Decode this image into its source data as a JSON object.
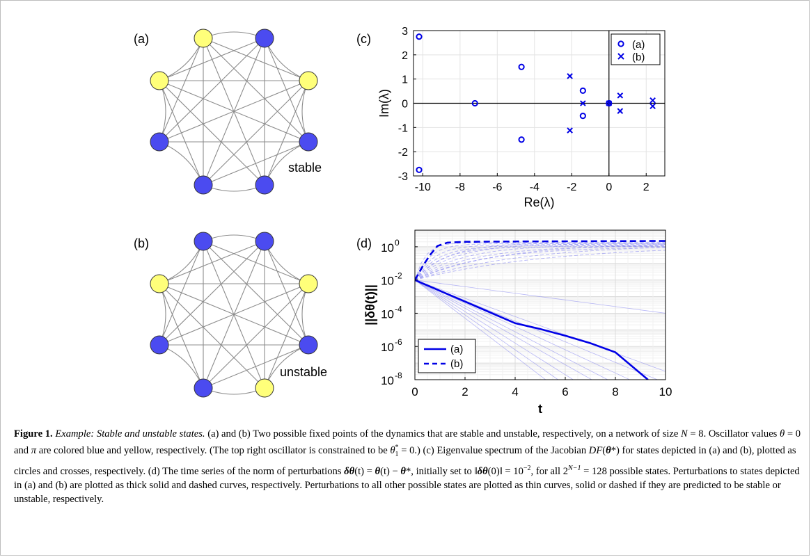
{
  "panels": {
    "a": {
      "tag": "(a)",
      "state_label": "stable",
      "node_colors": [
        "yellow",
        "blue",
        "yellow",
        "yellow",
        "blue",
        "blue",
        "blue",
        "blue"
      ]
    },
    "b": {
      "tag": "(b)",
      "state_label": "unstable",
      "node_colors": [
        "blue",
        "blue",
        "yellow",
        "yellow",
        "blue",
        "blue",
        "blue",
        "yellow"
      ]
    },
    "c": {
      "tag": "(c)"
    },
    "d": {
      "tag": "(d)"
    }
  },
  "colors": {
    "blue": "#4b4bf0",
    "yellow": "#ffff7a",
    "series": "#0000e6"
  },
  "chart_data": [
    {
      "type": "scatter",
      "xlabel": "Re(λ)",
      "ylabel": "Im(λ)",
      "xlim": [
        -10.5,
        3
      ],
      "ylim": [
        -3,
        3
      ],
      "xticks": [
        -10,
        -8,
        -6,
        -4,
        -2,
        0,
        2
      ],
      "yticks": [
        3,
        2,
        1,
        0,
        -1,
        -2,
        -3
      ],
      "grid": true,
      "legend": "top-right",
      "series": [
        {
          "name": "(a)",
          "marker": "circle",
          "points": [
            [
              -10.2,
              2.75
            ],
            [
              -10.2,
              -2.75
            ],
            [
              -7.2,
              0
            ],
            [
              -4.7,
              1.5
            ],
            [
              -4.7,
              -1.5
            ],
            [
              -1.4,
              0.52
            ],
            [
              -1.4,
              -0.52
            ],
            [
              0,
              0
            ]
          ]
        },
        {
          "name": "(b)",
          "marker": "cross",
          "points": [
            [
              -2.1,
              1.12
            ],
            [
              -2.1,
              -1.12
            ],
            [
              -1.4,
              0
            ],
            [
              0.6,
              0.32
            ],
            [
              0.6,
              -0.32
            ],
            [
              2.35,
              0.12
            ],
            [
              2.35,
              -0.12
            ],
            [
              0,
              0
            ]
          ]
        }
      ]
    },
    {
      "type": "line",
      "xlabel": "t",
      "ylabel": "||δθ(t)||",
      "xlim": [
        0,
        10
      ],
      "ylim_log10": [
        -8,
        1
      ],
      "yscale": "log",
      "xticks": [
        0,
        2,
        4,
        6,
        8,
        10
      ],
      "yticks": [
        "10^{0}",
        "10^{-2}",
        "10^{-4}",
        "10^{-6}",
        "10^{-8}"
      ],
      "grid": true,
      "legend": "bottom-left",
      "series": [
        {
          "name": "(a)",
          "style": "solid",
          "x": [
            0,
            1,
            2,
            3,
            4,
            5,
            6,
            7,
            8,
            9.3
          ],
          "log10_y": [
            -2,
            -2.65,
            -3.3,
            -3.95,
            -4.6,
            -4.95,
            -5.35,
            -5.8,
            -6.35,
            -8
          ]
        },
        {
          "name": "(b)",
          "style": "dashed",
          "x": [
            0,
            0.3,
            0.6,
            0.9,
            1.3,
            2,
            4,
            6,
            8,
            10
          ],
          "log10_y": [
            -2,
            -1.2,
            -0.5,
            0.05,
            0.25,
            0.3,
            0.32,
            0.33,
            0.34,
            0.35
          ]
        }
      ]
    }
  ],
  "caption": {
    "label": "Figure 1.",
    "title_italic": "Example",
    "title_rest": ": Stable and unstable states.",
    "s1": " (a) and (b) Two possible fixed points of the dynamics that are stable and unstable, respectively, on a network of size ",
    "m_N": "N",
    "s2": " = 8. Oscillator values ",
    "m_theta": "θ",
    "s3": " = 0 and ",
    "m_pi": "π",
    "s4": " are colored blue and yellow, respectively. (The top right oscillator is constrained to be ",
    "m_theta1": "θ",
    "sup_star": "*",
    "sub_1": "1",
    "s5": " = 0.) (c) Eigenvalue spectrum of the Jacobian ",
    "m_DF": "DF",
    "s6": "(",
    "m_btheta": "θ",
    "s7": "*) for states depicted in (a) and (b), plotted as circles and crosses, respectively. (d) The time series of the norm of perturbations ",
    "m_dtheta": "δθ",
    "s8": "(t) = ",
    "m_btheta2": "θ",
    "s9": "(t) − ",
    "m_btheta3": "θ",
    "s10": "*, initially set to ‖",
    "m_dtheta2": "δθ",
    "s11": "(0)‖ = 10",
    "sup_m2": "−2",
    "s12": ", for all 2",
    "sup_N1": "N−1",
    "s13": " = 128 possible states. Perturbations to states depicted in (a) and (b) are plotted as thick solid and dashed curves, respectively. Perturbations to all other possible states are plotted as thin curves, solid or dashed if they are predicted to be stable or unstable, respectively."
  }
}
